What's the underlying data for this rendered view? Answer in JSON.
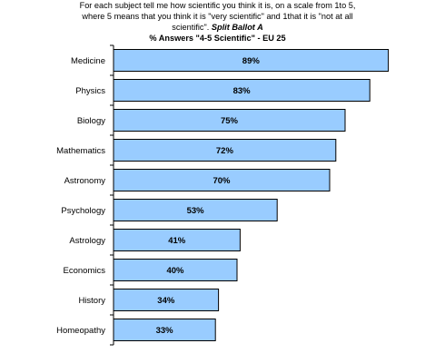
{
  "header": {
    "question_line1": "For each subject tell me how scientific you think it is, on a scale from 1to 5,",
    "question_line2": "where 5 means that you think it is \"very scientific\" and 1that it is \"not at all",
    "question_line3": "scientific\".",
    "ballot_label": "Split Ballot A",
    "subtitle": "% Answers \"4-5 Scientific\" - EU 25"
  },
  "colors": {
    "bar_fill": "#99ccff",
    "bar_stroke": "#000000",
    "axis_line": "#000000"
  },
  "chart_data": {
    "type": "bar",
    "orientation": "horizontal",
    "title": "% Answers \"4-5 Scientific\" - EU 25",
    "xlabel": "",
    "ylabel": "",
    "xlim": [
      0,
      90
    ],
    "grid": false,
    "legend": "none",
    "categories": [
      "Medicine",
      "Physics",
      "Biology",
      "Mathematics",
      "Astronomy",
      "Psychology",
      "Astrology",
      "Economics",
      "History",
      "Homeopathy"
    ],
    "values": [
      89,
      83,
      75,
      72,
      70,
      53,
      41,
      40,
      34,
      33
    ],
    "value_labels": [
      "89%",
      "83%",
      "75%",
      "72%",
      "70%",
      "53%",
      "41%",
      "40%",
      "34%",
      "33%"
    ]
  }
}
